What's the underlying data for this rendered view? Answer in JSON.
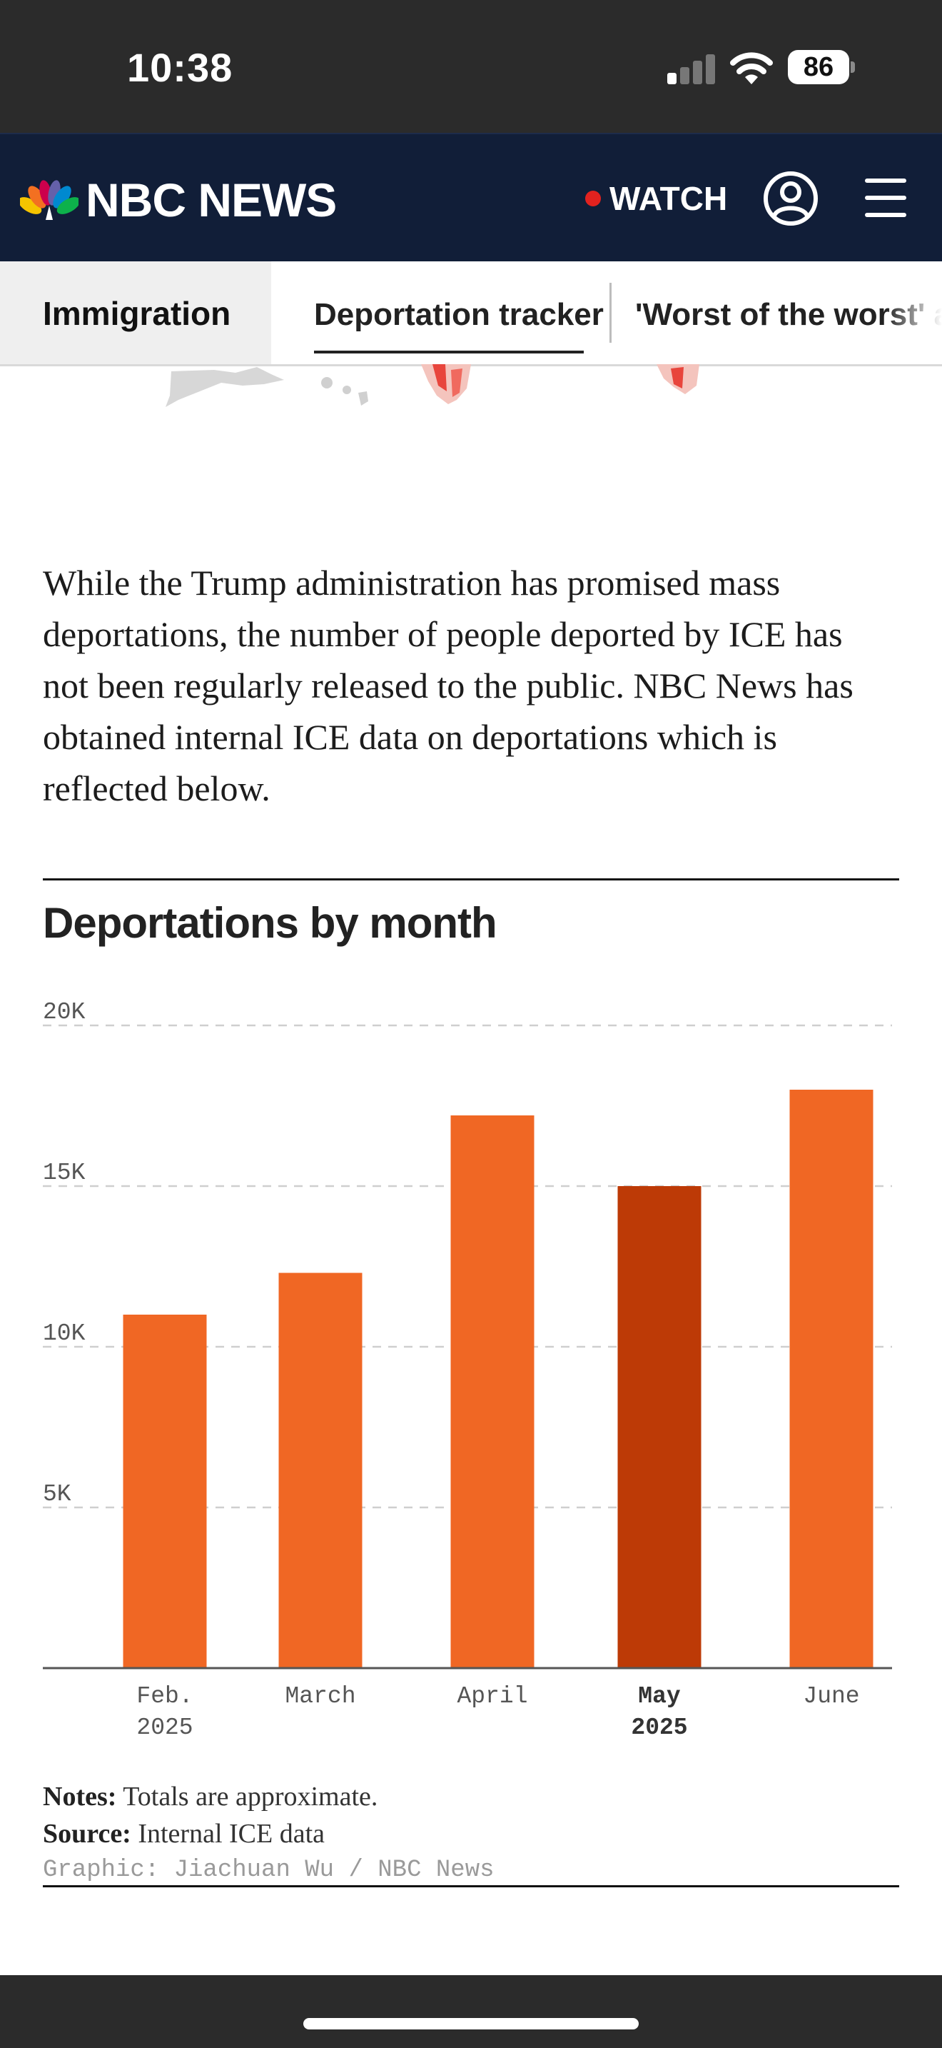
{
  "status_bar": {
    "time": "10:38",
    "battery": "86"
  },
  "header": {
    "brand": "NBC NEWS",
    "watch_label": "WATCH"
  },
  "tabs": {
    "section": "Immigration",
    "items": [
      "Deportation tracker",
      "'Worst of the worst' a"
    ],
    "active_index": 0
  },
  "article": {
    "intro": "While the Trump administration has promised mass deportations, the number of people deported by ICE has not been regularly released to the public. NBC News has obtained internal ICE data on deportations which is reflected below."
  },
  "chart_data": {
    "type": "bar",
    "title": "Deportations by month",
    "categories": [
      "Feb. 2025",
      "March",
      "April",
      "May 2025",
      "June"
    ],
    "category_lines": [
      [
        "Feb.",
        "2025"
      ],
      [
        "March"
      ],
      [
        "April"
      ],
      [
        "May",
        "2025"
      ],
      [
        "June"
      ]
    ],
    "values": [
      11000,
      12300,
      17200,
      15000,
      18000
    ],
    "highlight_index": 3,
    "ylim": [
      0,
      20000
    ],
    "yticks": [
      5000,
      10000,
      15000,
      20000
    ],
    "ytick_labels": [
      "5K",
      "10K",
      "15K",
      "20K"
    ],
    "xlabel": "",
    "ylabel": "",
    "grid": true,
    "colors": {
      "bar": "#f06724",
      "highlight": "#bd3a06",
      "grid": "#cfcfcf",
      "axis": "#555555"
    }
  },
  "footnotes": {
    "notes_label": "Notes:",
    "notes_text": "Totals are approximate.",
    "source_label": "Source:",
    "source_text": "Internal ICE data",
    "credit": "Graphic: Jiachuan Wu / NBC News"
  }
}
